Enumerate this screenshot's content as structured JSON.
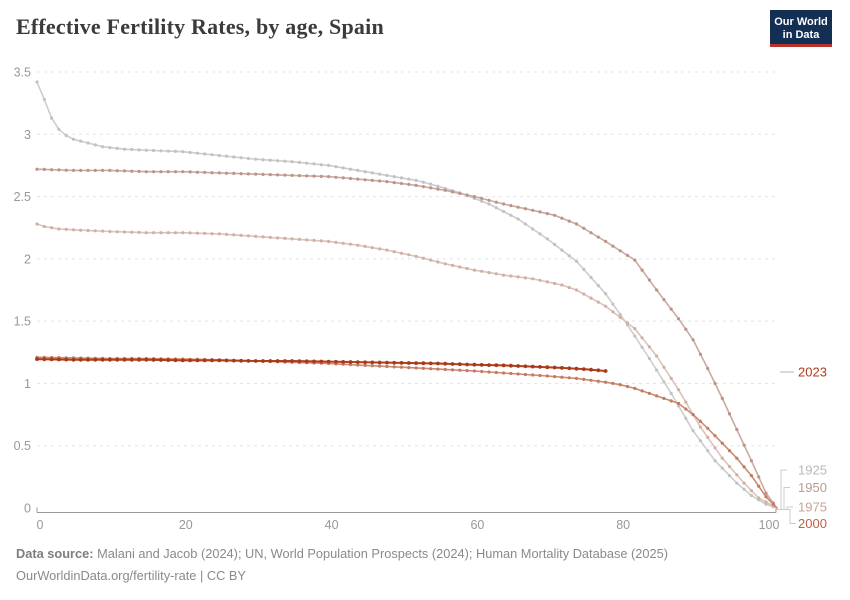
{
  "header": {
    "title": "Effective Fertility Rates, by age, Spain",
    "logo": {
      "line1": "Our World",
      "line2": "in Data"
    }
  },
  "footer": {
    "source_label": "Data source:",
    "source_text": " Malani and Jacob (2024); UN, World Population Prospects (2024); Human Mortality Database (2025)",
    "link_text": "OurWorldinData.org/fertility-rate | CC BY"
  },
  "colors": {
    "logo_navy": "#142f54",
    "logo_red": "#b5332a",
    "grid": "#e3e3e3",
    "axis": "#9a9a9a",
    "tick_text": "#999999",
    "bracket": "#cccccc",
    "highlight_red": "#b13e1e"
  },
  "chart_data": {
    "type": "line",
    "title": "Effective Fertility Rates, by age, Spain",
    "xlabel": "",
    "ylabel": "",
    "x_axis": {
      "ticks": [
        0,
        20,
        40,
        60,
        80,
        100
      ],
      "range": [
        0,
        101.5
      ]
    },
    "y_axis": {
      "ticks": [
        0,
        0.5,
        1,
        1.5,
        2,
        2.5,
        3,
        3.5
      ],
      "range": [
        0,
        3.5
      ],
      "gridlines": "dashed"
    },
    "legend_position": "right-edge-labels",
    "series": [
      {
        "name": "1925",
        "color": "#cdcdcd",
        "marker_color": "#c2c2c2",
        "label_color": "#b9b9b9",
        "points": [
          [
            0,
            3.42
          ],
          [
            1,
            3.28
          ],
          [
            2,
            3.13
          ],
          [
            3,
            3.04
          ],
          [
            4,
            2.99
          ],
          [
            5,
            2.96
          ],
          [
            7,
            2.93
          ],
          [
            9,
            2.9
          ],
          [
            12,
            2.88
          ],
          [
            16,
            2.87
          ],
          [
            20,
            2.86
          ],
          [
            25,
            2.83
          ],
          [
            30,
            2.8
          ],
          [
            35,
            2.78
          ],
          [
            40,
            2.75
          ],
          [
            44,
            2.71
          ],
          [
            48,
            2.67
          ],
          [
            52,
            2.63
          ],
          [
            54,
            2.6
          ],
          [
            58,
            2.53
          ],
          [
            62,
            2.44
          ],
          [
            66,
            2.32
          ],
          [
            70,
            2.16
          ],
          [
            74,
            1.98
          ],
          [
            78,
            1.72
          ],
          [
            81,
            1.47
          ],
          [
            84,
            1.2
          ],
          [
            87,
            0.92
          ],
          [
            90,
            0.62
          ],
          [
            93,
            0.38
          ],
          [
            96,
            0.2
          ],
          [
            98,
            0.1
          ],
          [
            100,
            0.03
          ],
          [
            101.5,
            0
          ]
        ]
      },
      {
        "name": "1950",
        "color": "#cbaaa0",
        "marker_color": "#bb9489",
        "label_color": "#b79c90",
        "points": [
          [
            0,
            2.72
          ],
          [
            5,
            2.71
          ],
          [
            10,
            2.71
          ],
          [
            15,
            2.7
          ],
          [
            20,
            2.7
          ],
          [
            25,
            2.69
          ],
          [
            30,
            2.68
          ],
          [
            35,
            2.67
          ],
          [
            40,
            2.66
          ],
          [
            44,
            2.64
          ],
          [
            48,
            2.62
          ],
          [
            52,
            2.59
          ],
          [
            56,
            2.55
          ],
          [
            60,
            2.5
          ],
          [
            64,
            2.44
          ],
          [
            68,
            2.39
          ],
          [
            71,
            2.35
          ],
          [
            74,
            2.28
          ],
          [
            78,
            2.14
          ],
          [
            82,
            1.99
          ],
          [
            85,
            1.75
          ],
          [
            88,
            1.52
          ],
          [
            90,
            1.35
          ],
          [
            92,
            1.12
          ],
          [
            94,
            0.88
          ],
          [
            96,
            0.63
          ],
          [
            98,
            0.38
          ],
          [
            100,
            0.12
          ],
          [
            101.5,
            0
          ]
        ]
      },
      {
        "name": "1975",
        "color": "#dcc3ba",
        "marker_color": "#d0b0a5",
        "label_color": "#c7a396",
        "points": [
          [
            0,
            2.28
          ],
          [
            1,
            2.26
          ],
          [
            3,
            2.24
          ],
          [
            6,
            2.23
          ],
          [
            10,
            2.22
          ],
          [
            15,
            2.21
          ],
          [
            20,
            2.21
          ],
          [
            25,
            2.2
          ],
          [
            30,
            2.18
          ],
          [
            35,
            2.16
          ],
          [
            40,
            2.14
          ],
          [
            44,
            2.11
          ],
          [
            48,
            2.07
          ],
          [
            52,
            2.02
          ],
          [
            56,
            1.96
          ],
          [
            60,
            1.91
          ],
          [
            64,
            1.87
          ],
          [
            68,
            1.84
          ],
          [
            72,
            1.79
          ],
          [
            74,
            1.75
          ],
          [
            78,
            1.62
          ],
          [
            82,
            1.44
          ],
          [
            85,
            1.22
          ],
          [
            88,
            0.95
          ],
          [
            91,
            0.65
          ],
          [
            94,
            0.4
          ],
          [
            97,
            0.2
          ],
          [
            99,
            0.08
          ],
          [
            101.5,
            0
          ]
        ]
      },
      {
        "name": "2000",
        "color": "#cd8a70",
        "marker_color": "#c47a5e",
        "label_color": "#c4613e",
        "points": [
          [
            0,
            1.21
          ],
          [
            5,
            1.205
          ],
          [
            10,
            1.2
          ],
          [
            15,
            1.2
          ],
          [
            20,
            1.195
          ],
          [
            25,
            1.19
          ],
          [
            30,
            1.18
          ],
          [
            35,
            1.17
          ],
          [
            40,
            1.16
          ],
          [
            45,
            1.145
          ],
          [
            50,
            1.13
          ],
          [
            55,
            1.115
          ],
          [
            60,
            1.1
          ],
          [
            65,
            1.08
          ],
          [
            70,
            1.06
          ],
          [
            74,
            1.04
          ],
          [
            78,
            1.01
          ],
          [
            80,
            0.99
          ],
          [
            82,
            0.96
          ],
          [
            84,
            0.92
          ],
          [
            86,
            0.88
          ],
          [
            88,
            0.84
          ],
          [
            90,
            0.75
          ],
          [
            92,
            0.64
          ],
          [
            94,
            0.52
          ],
          [
            96,
            0.4
          ],
          [
            98,
            0.26
          ],
          [
            100,
            0.09
          ],
          [
            101.5,
            0
          ]
        ]
      },
      {
        "name": "2023",
        "color": "#b13e1e",
        "marker_color": "#a63917",
        "label_color": "#ae3d20",
        "points": [
          [
            0,
            1.195
          ],
          [
            5,
            1.19
          ],
          [
            10,
            1.19
          ],
          [
            15,
            1.19
          ],
          [
            20,
            1.185
          ],
          [
            25,
            1.185
          ],
          [
            30,
            1.18
          ],
          [
            35,
            1.18
          ],
          [
            40,
            1.175
          ],
          [
            45,
            1.17
          ],
          [
            50,
            1.165
          ],
          [
            55,
            1.16
          ],
          [
            60,
            1.15
          ],
          [
            64,
            1.145
          ],
          [
            68,
            1.135
          ],
          [
            72,
            1.125
          ],
          [
            75,
            1.115
          ],
          [
            78,
            1.1
          ]
        ]
      }
    ]
  }
}
